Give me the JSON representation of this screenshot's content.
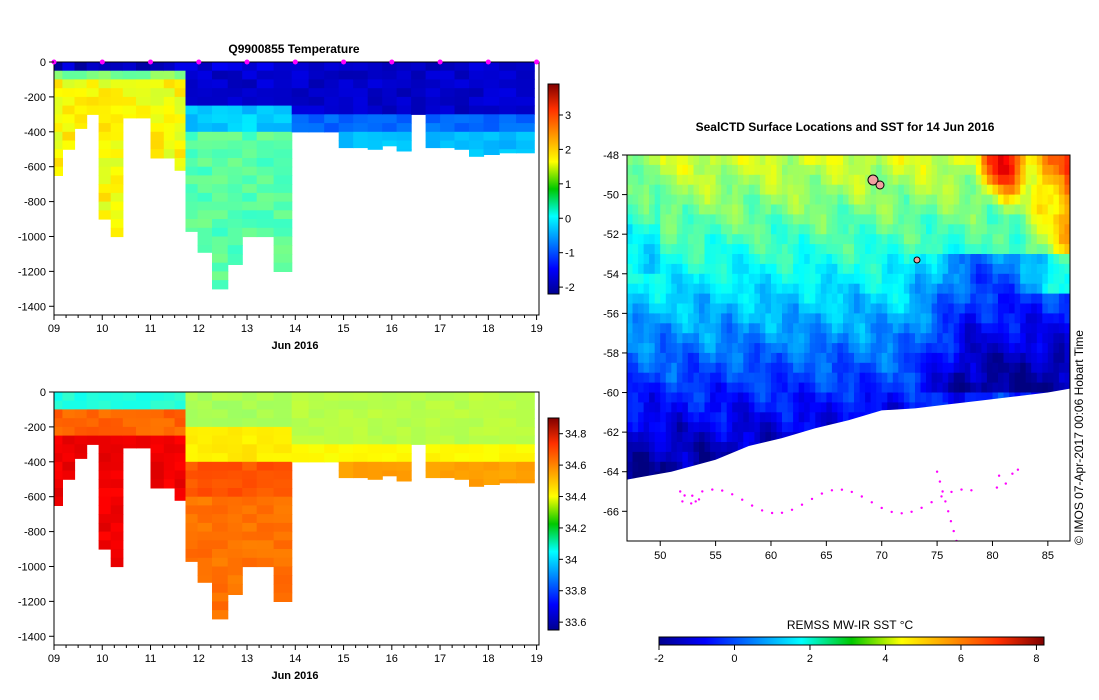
{
  "chart_data": [
    {
      "type": "heatmap",
      "title": "Q9900855  Temperature",
      "xlabel": "Jun 2016",
      "ylabel": "",
      "x_ticks": [
        "09",
        "10",
        "11",
        "12",
        "13",
        "14",
        "15",
        "16",
        "17",
        "18",
        "19"
      ],
      "x_range": [
        9,
        19.05
      ],
      "y_ticks": [
        "0",
        "-200",
        "-400",
        "-600",
        "-800",
        "-1000",
        "-1200",
        "-1400"
      ],
      "y_range": [
        -1450,
        0
      ],
      "colorbar": {
        "labels": [
          "3",
          "2",
          "1",
          "0",
          "-1",
          "-2"
        ],
        "min": -2.2,
        "max": 3.9
      },
      "profiles": [
        {
          "t": 9.05,
          "depth": 650
        },
        {
          "t": 9.3,
          "depth": 500
        },
        {
          "t": 9.55,
          "depth": 380
        },
        {
          "t": 9.8,
          "depth": 300
        },
        {
          "t": 10.05,
          "depth": 900
        },
        {
          "t": 10.3,
          "depth": 1000
        },
        {
          "t": 10.55,
          "depth": 320
        },
        {
          "t": 10.85,
          "depth": 320
        },
        {
          "t": 11.15,
          "depth": 550
        },
        {
          "t": 11.4,
          "depth": 550
        },
        {
          "t": 11.6,
          "depth": 620
        },
        {
          "t": 11.85,
          "depth": 970
        },
        {
          "t": 12.1,
          "depth": 1090
        },
        {
          "t": 12.45,
          "depth": 1300
        },
        {
          "t": 12.75,
          "depth": 1160
        },
        {
          "t": 13.05,
          "depth": 1000
        },
        {
          "t": 13.35,
          "depth": 1000
        },
        {
          "t": 13.75,
          "depth": 1200
        },
        {
          "t": 14.1,
          "depth": 400
        },
        {
          "t": 14.45,
          "depth": 400
        },
        {
          "t": 14.75,
          "depth": 400
        },
        {
          "t": 15.05,
          "depth": 490
        },
        {
          "t": 15.35,
          "depth": 490
        },
        {
          "t": 15.65,
          "depth": 500
        },
        {
          "t": 15.95,
          "depth": 480
        },
        {
          "t": 16.25,
          "depth": 510
        },
        {
          "t": 16.55,
          "depth": 300
        },
        {
          "t": 16.85,
          "depth": 490
        },
        {
          "t": 17.15,
          "depth": 490
        },
        {
          "t": 17.45,
          "depth": 500
        },
        {
          "t": 17.75,
          "depth": 540
        },
        {
          "t": 18.05,
          "depth": 530
        },
        {
          "t": 18.4,
          "depth": 520
        },
        {
          "t": 18.75,
          "depth": 520
        }
      ]
    },
    {
      "type": "heatmap",
      "title": "",
      "xlabel": "Jun 2016",
      "ylabel": "",
      "x_ticks": [
        "09",
        "10",
        "11",
        "12",
        "13",
        "14",
        "15",
        "16",
        "17",
        "18",
        "19"
      ],
      "x_range": [
        9,
        19.05
      ],
      "y_ticks": [
        "0",
        "-200",
        "-400",
        "-600",
        "-800",
        "-1000",
        "-1200",
        "-1400"
      ],
      "y_range": [
        -1450,
        0
      ],
      "colorbar": {
        "labels": [
          "34.8",
          "34.6",
          "34.4",
          "34.2",
          "34",
          "33.8",
          "33.6"
        ],
        "min": 33.55,
        "max": 34.9
      }
    },
    {
      "type": "heatmap",
      "title": "SealCTD Surface Locations and SST for 14 Jun 2016",
      "xlabel": "",
      "ylabel": "",
      "x_ticks": [
        "50",
        "55",
        "60",
        "65",
        "70",
        "75",
        "80",
        "85"
      ],
      "x_range": [
        47,
        87
      ],
      "y_ticks": [
        "-48",
        "-50",
        "-52",
        "-54",
        "-56",
        "-58",
        "-60",
        "-62",
        "-64",
        "-66"
      ],
      "y_range": [
        -67.5,
        -48
      ],
      "colorbar": {
        "label": "REMSS MW-IR SST °C",
        "ticks": [
          "-2",
          "0",
          "2",
          "4",
          "6",
          "8"
        ],
        "min": -2,
        "max": 8.2
      }
    }
  ],
  "credit": "©  IMOS 07-Apr-2017 00:06 Hobart Time"
}
